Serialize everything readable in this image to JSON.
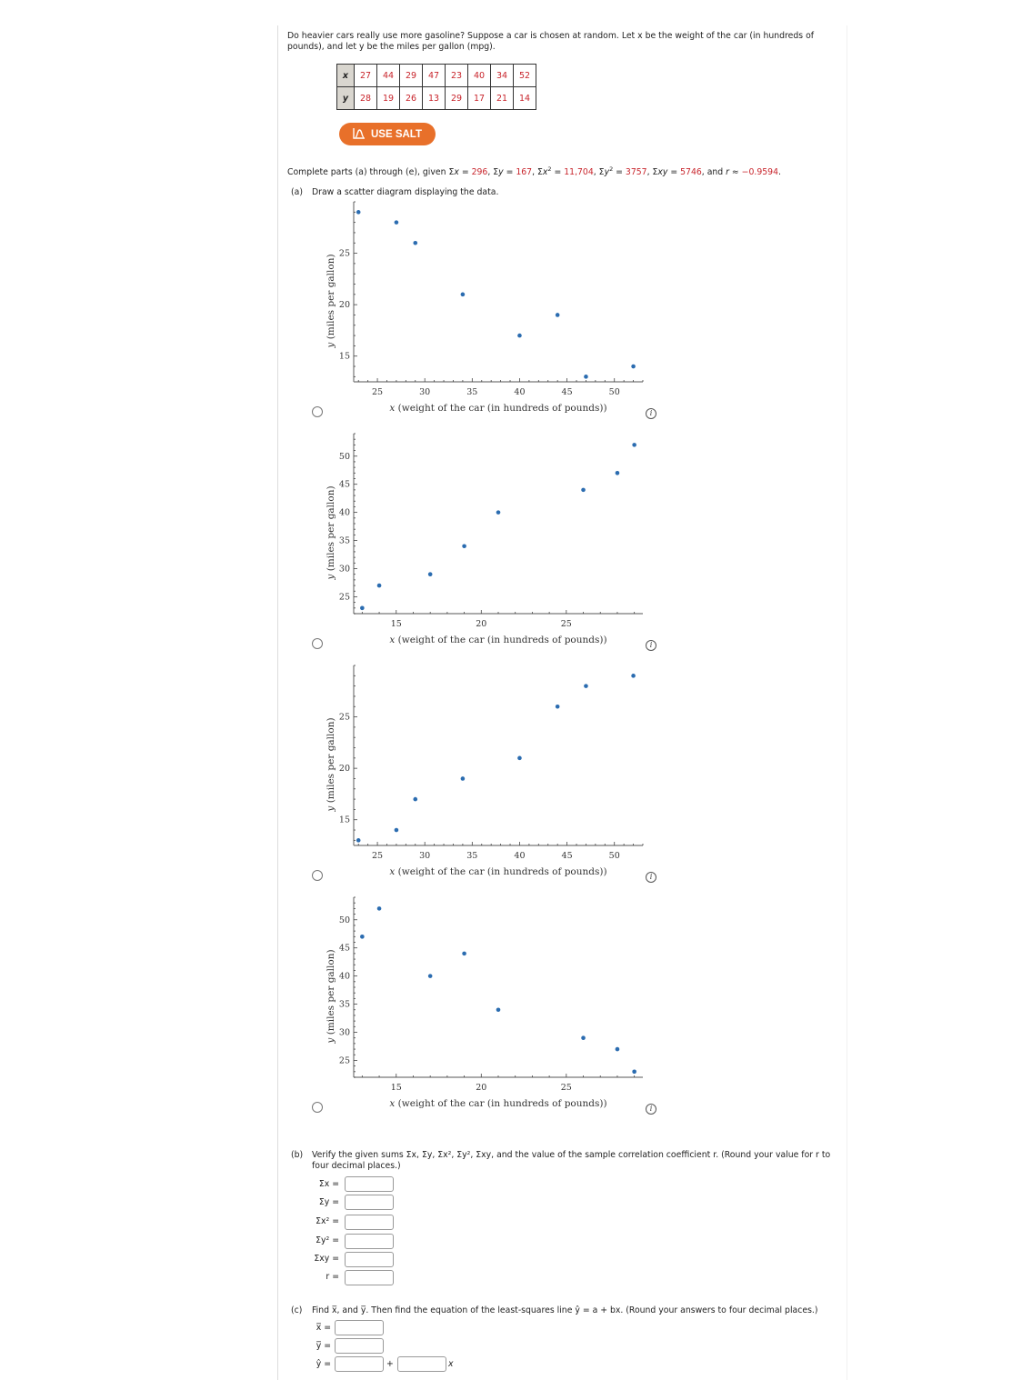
{
  "question": {
    "intro_line1": "Do heavier cars really use more gasoline? Suppose a car is chosen at random. Let x be the weight of the car (in hundreds of",
    "intro_line2": "pounds), and let y be the miles per gallon (mpg).",
    "table": {
      "x_label": "x",
      "y_label": "y",
      "x_values": [
        "27",
        "44",
        "29",
        "47",
        "23",
        "40",
        "34",
        "52"
      ],
      "y_values": [
        "28",
        "19",
        "26",
        "13",
        "29",
        "17",
        "21",
        "14"
      ]
    },
    "salt_button": "USE SALT",
    "given": {
      "prefix": "Complete parts (a) through (e), given ",
      "sum_x": "296",
      "sum_y": "167",
      "sum_x2": "11,704",
      "sum_y2": "3757",
      "sum_xy": "5746",
      "r": "−0.9594"
    }
  },
  "part_a": {
    "label": "(a)",
    "text": "Draw a scatter diagram displaying the data.",
    "info_icon": "i",
    "options": [
      {
        "selected": false
      },
      {
        "selected": false
      },
      {
        "selected": false
      },
      {
        "selected": false
      }
    ]
  },
  "chart_data": [
    {
      "type": "scatter",
      "title": "",
      "xlabel": "x (weight of the car (in hundreds of pounds))",
      "ylabel": "y (miles per gallon)",
      "x": [
        23,
        27,
        29,
        34,
        40,
        44,
        47,
        52
      ],
      "y": [
        29,
        28,
        26,
        21,
        17,
        19,
        13,
        14
      ],
      "xticks": [
        25,
        30,
        35,
        40,
        45,
        50
      ],
      "yticks": [
        15,
        20,
        25
      ],
      "xlim": [
        22.5,
        53
      ],
      "ylim": [
        12.5,
        30
      ],
      "grid": false,
      "color": "#2b6cb0"
    },
    {
      "type": "scatter",
      "title": "",
      "xlabel": "x (weight of the car (in hundreds of pounds))",
      "ylabel": "y (miles per gallon)",
      "x": [
        13,
        14,
        17,
        19,
        21,
        26,
        28,
        29
      ],
      "y": [
        23,
        27,
        29,
        34,
        40,
        44,
        47,
        52
      ],
      "xticks": [
        15,
        20,
        25
      ],
      "yticks": [
        25,
        30,
        35,
        40,
        45,
        50
      ],
      "xlim": [
        12.5,
        29.5
      ],
      "ylim": [
        22,
        54
      ],
      "grid": false,
      "color": "#2b6cb0"
    },
    {
      "type": "scatter",
      "title": "",
      "xlabel": "x (weight of the car (in hundreds of pounds))",
      "ylabel": "y (miles per gallon)",
      "x": [
        23,
        27,
        29,
        34,
        40,
        44,
        47,
        52
      ],
      "y": [
        13,
        14,
        17,
        19,
        21,
        26,
        28,
        29
      ],
      "xticks": [
        25,
        30,
        35,
        40,
        45,
        50
      ],
      "yticks": [
        15,
        20,
        25
      ],
      "xlim": [
        22.5,
        53
      ],
      "ylim": [
        12.5,
        30
      ],
      "grid": false,
      "color": "#2b6cb0"
    },
    {
      "type": "scatter",
      "title": "",
      "xlabel": "x (weight of the car (in hundreds of pounds))",
      "ylabel": "y (miles per gallon)",
      "x": [
        13,
        14,
        17,
        19,
        21,
        26,
        28,
        29
      ],
      "y": [
        47,
        52,
        40,
        44,
        34,
        29,
        27,
        23
      ],
      "xticks": [
        15,
        20,
        25
      ],
      "yticks": [
        25,
        30,
        35,
        40,
        45,
        50
      ],
      "xlim": [
        12.5,
        29.5
      ],
      "ylim": [
        22,
        54
      ],
      "grid": false,
      "color": "#2b6cb0"
    }
  ],
  "part_b": {
    "label": "(b)",
    "text_line1": "Verify the given sums Σx, Σy, Σx², Σy², Σxy, and the value of the sample correlation coefficient r. (Round your value for r to",
    "text_line2": "four decimal places.)",
    "fields": [
      {
        "label": "Σx  =",
        "value": ""
      },
      {
        "label": "Σy  =",
        "value": ""
      },
      {
        "label": "Σx²  =",
        "value": ""
      },
      {
        "label": "Σy²  =",
        "value": ""
      },
      {
        "label": "Σxy  =",
        "value": ""
      },
      {
        "label": "r  =",
        "value": ""
      }
    ]
  },
  "part_c": {
    "label": "(c)",
    "text": "Find x̅, and y̅. Then find the equation of the least-squares line ŷ = a + bx. (Round your answers to four decimal places.)",
    "fields": [
      {
        "label": "x̅  =",
        "value": ""
      },
      {
        "label": "y̅  =",
        "value": ""
      },
      {
        "label": "ŷ  =",
        "value": ""
      }
    ],
    "plus": "+",
    "x_suffix": "x"
  }
}
